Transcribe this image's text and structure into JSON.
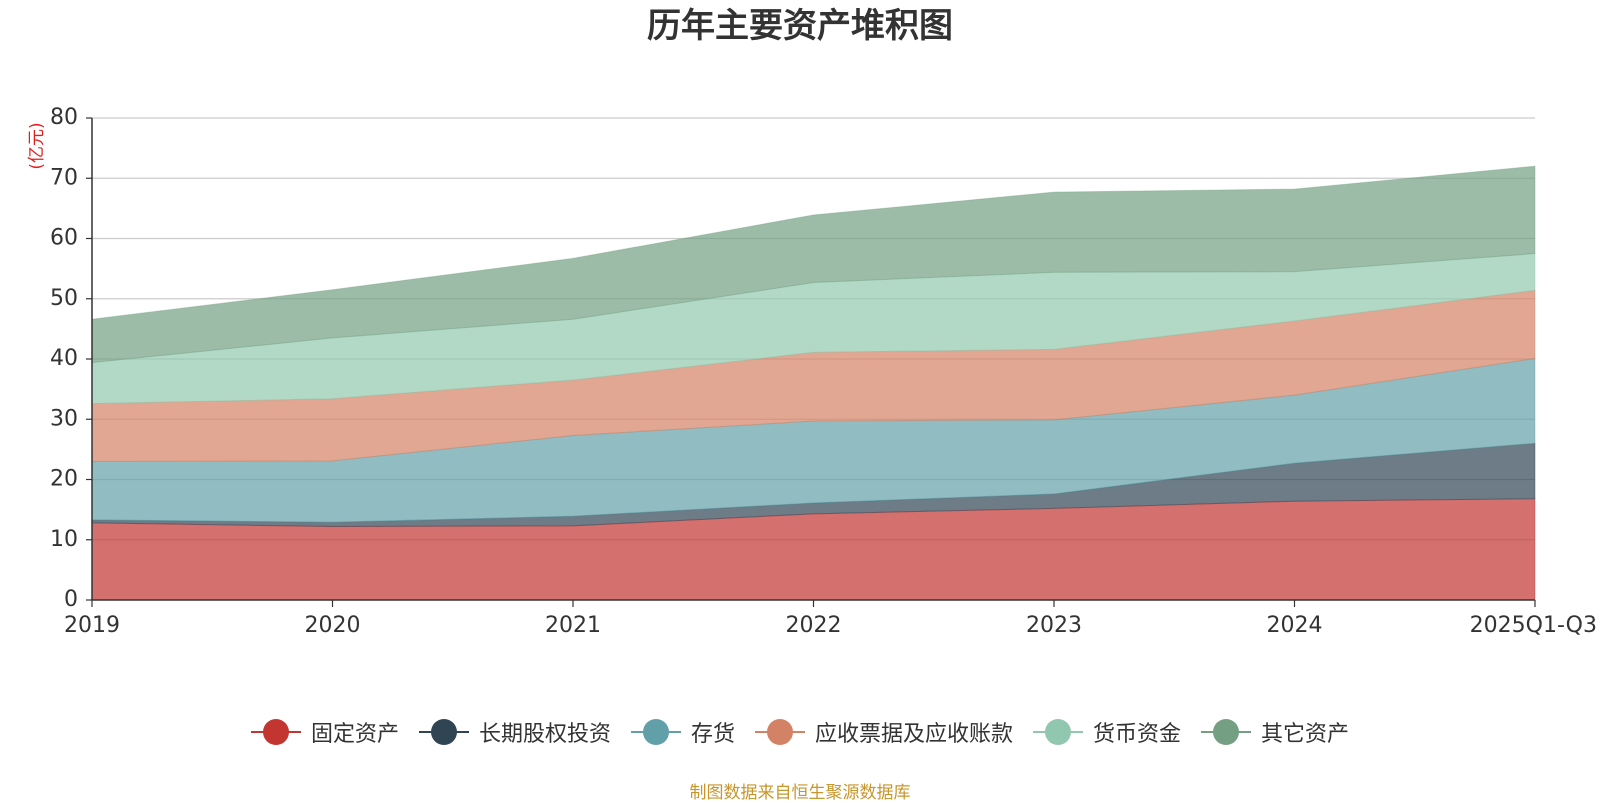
{
  "chart_data": {
    "type": "area",
    "stacked": true,
    "title": "历年主要资产堆积图",
    "ylabel": "(亿元)",
    "xlabel": "",
    "ylim": [
      0,
      80
    ],
    "yticks": [
      0,
      10,
      20,
      30,
      40,
      50,
      60,
      70,
      80
    ],
    "grid": true,
    "legend_position": "bottom",
    "categories": [
      "2019",
      "2020",
      "2021",
      "2022",
      "2023",
      "2024",
      "2025Q1-Q3"
    ],
    "series": [
      {
        "name": "固定资产",
        "color": "#c23531",
        "values": [
          12.8,
          12.2,
          12.3,
          14.3,
          15.2,
          16.4,
          16.8
        ]
      },
      {
        "name": "长期股权投资",
        "color": "#2f4554",
        "values": [
          0.5,
          0.7,
          1.6,
          1.8,
          2.4,
          6.3,
          9.2
        ]
      },
      {
        "name": "存货",
        "color": "#61a0a8",
        "values": [
          9.7,
          10.2,
          13.4,
          13.6,
          12.3,
          11.3,
          14.1
        ]
      },
      {
        "name": "应收票据及应收账款",
        "color": "#d48265",
        "values": [
          9.6,
          10.3,
          9.2,
          11.4,
          11.7,
          12.3,
          11.3
        ]
      },
      {
        "name": "货币资金",
        "color": "#91c7ae",
        "values": [
          6.8,
          10.1,
          10.1,
          11.6,
          12.8,
          8.2,
          6.1
        ]
      },
      {
        "name": "其它资产",
        "color": "#749f83",
        "values": [
          7.2,
          8.0,
          10.1,
          11.2,
          13.3,
          13.7,
          14.5
        ]
      }
    ]
  },
  "source_note": "制图数据来自恒生聚源数据库"
}
